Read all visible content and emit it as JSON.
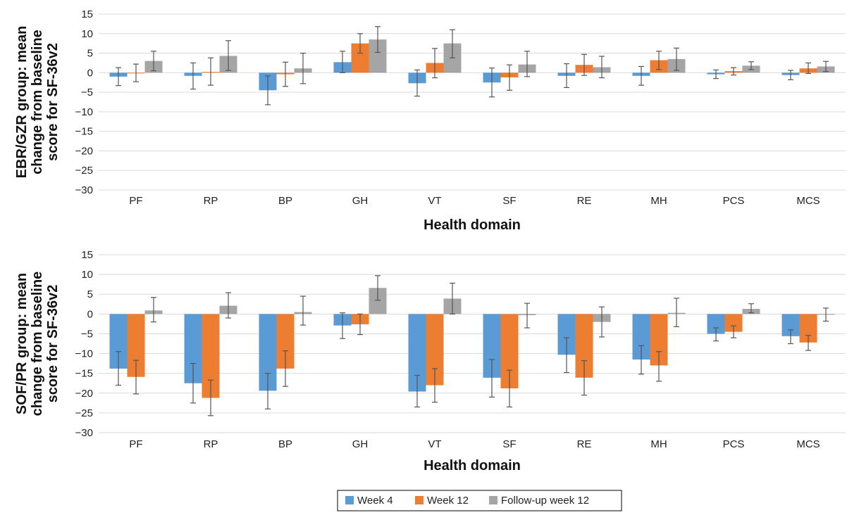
{
  "colors": {
    "week4": "#5B9BD5",
    "week12": "#ED7D31",
    "followup": "#A5A5A5",
    "grid": "#D9D9D9",
    "error": "#555555"
  },
  "legend": {
    "position": "bottom-center",
    "items": [
      {
        "label": "Week 4",
        "color": "#5B9BD5"
      },
      {
        "label": "Week 12",
        "color": "#ED7D31"
      },
      {
        "label": "Follow-up week 12",
        "color": "#A5A5A5"
      }
    ]
  },
  "chart_data": [
    {
      "type": "bar",
      "title": "",
      "ylabel": "EBR/GZR group: mean change from baseline score for SF-36v2",
      "ylabel_lines": [
        "EBR/GZR group: mean",
        "change from baseline",
        "score for SF-36v2"
      ],
      "xlabel": "Health domain",
      "categories": [
        "PF",
        "RP",
        "BP",
        "GH",
        "VT",
        "SF",
        "RE",
        "MH",
        "PCS",
        "MCS"
      ],
      "ylim": [
        -30,
        15
      ],
      "yticks": [
        15,
        10,
        5,
        0,
        -5,
        -10,
        -15,
        -20,
        -25,
        -30
      ],
      "yticks_labels": [
        "15",
        "10",
        "5",
        "0",
        "−5",
        "−10",
        "−15",
        "−20",
        "−25",
        "−30"
      ],
      "grid": true,
      "series": [
        {
          "name": "Week 4",
          "values": [
            -1.0,
            -0.8,
            -4.5,
            2.7,
            -2.7,
            -2.5,
            -0.8,
            -0.8,
            -0.4,
            -0.6
          ],
          "err_low": [
            -3.3,
            -4.2,
            -8.2,
            0.0,
            -6.0,
            -6.2,
            -3.8,
            -3.2,
            -1.5,
            -1.8
          ],
          "err_high": [
            1.3,
            2.5,
            -0.8,
            5.5,
            0.7,
            1.2,
            2.3,
            1.6,
            0.7,
            0.6
          ]
        },
        {
          "name": "Week 12",
          "values": [
            0.0,
            0.2,
            -0.4,
            7.5,
            2.5,
            -1.2,
            2.0,
            3.2,
            0.4,
            1.1
          ],
          "err_low": [
            -2.3,
            -3.2,
            -3.5,
            5.0,
            -1.3,
            -4.5,
            -0.7,
            0.8,
            -0.6,
            -0.2
          ],
          "err_high": [
            2.2,
            3.8,
            2.7,
            10.0,
            6.2,
            2.0,
            4.7,
            5.5,
            1.3,
            2.5
          ]
        },
        {
          "name": "Follow-up week 12",
          "values": [
            3.0,
            4.3,
            1.1,
            8.5,
            7.5,
            2.1,
            1.4,
            3.5,
            1.8,
            1.6
          ],
          "err_low": [
            0.5,
            0.6,
            -2.8,
            5.2,
            3.8,
            -1.0,
            -1.3,
            0.6,
            0.8,
            0.3
          ],
          "err_high": [
            5.5,
            8.2,
            5.0,
            11.8,
            11.0,
            5.5,
            4.2,
            6.3,
            2.8,
            2.9
          ]
        }
      ]
    },
    {
      "type": "bar",
      "title": "",
      "ylabel": "SOF/PR group: mean change from baseline score for SF-36v2",
      "ylabel_lines": [
        "SOF/PR group: mean",
        "change from baseline",
        "score for SF-36v2"
      ],
      "xlabel": "Health domain",
      "categories": [
        "PF",
        "RP",
        "BP",
        "GH",
        "VT",
        "SF",
        "RE",
        "MH",
        "PCS",
        "MCS"
      ],
      "ylim": [
        -30,
        15
      ],
      "yticks": [
        15,
        10,
        5,
        0,
        -5,
        -10,
        -15,
        -20,
        -25,
        -30
      ],
      "yticks_labels": [
        "15",
        "10",
        "5",
        "0",
        "−5",
        "−10",
        "−15",
        "−20",
        "−25",
        "−30"
      ],
      "grid": true,
      "series": [
        {
          "name": "Week 4",
          "values": [
            -13.8,
            -17.5,
            -19.4,
            -2.9,
            -19.6,
            -16.1,
            -10.3,
            -11.5,
            -5.0,
            -5.6
          ],
          "err_low": [
            -18.0,
            -22.5,
            -24.0,
            -6.2,
            -23.5,
            -21.0,
            -14.8,
            -15.2,
            -6.8,
            -7.5
          ],
          "err_high": [
            -9.5,
            -12.5,
            -15.0,
            0.3,
            -15.5,
            -11.5,
            -6.0,
            -8.0,
            -3.5,
            -4.0
          ]
        },
        {
          "name": "Week 12",
          "values": [
            -15.9,
            -21.2,
            -13.8,
            -2.6,
            -18.0,
            -18.8,
            -16.1,
            -13.0,
            -4.5,
            -7.2
          ],
          "err_low": [
            -20.2,
            -25.7,
            -18.3,
            -5.2,
            -22.3,
            -23.5,
            -20.5,
            -17.0,
            -6.0,
            -9.2
          ],
          "err_high": [
            -11.7,
            -16.7,
            -9.3,
            0.0,
            -13.8,
            -14.2,
            -11.8,
            -9.5,
            -3.0,
            -5.4
          ]
        },
        {
          "name": "Follow-up week 12",
          "values": [
            0.9,
            2.1,
            0.5,
            6.6,
            3.9,
            -0.3,
            -2.0,
            0.3,
            1.3,
            -0.2
          ],
          "err_low": [
            -2.0,
            -1.0,
            -2.8,
            3.5,
            0.0,
            -3.5,
            -5.8,
            -3.2,
            0.3,
            -1.8
          ],
          "err_high": [
            4.2,
            5.4,
            4.5,
            9.7,
            7.8,
            2.7,
            1.8,
            4.0,
            2.6,
            1.5
          ]
        }
      ]
    }
  ]
}
